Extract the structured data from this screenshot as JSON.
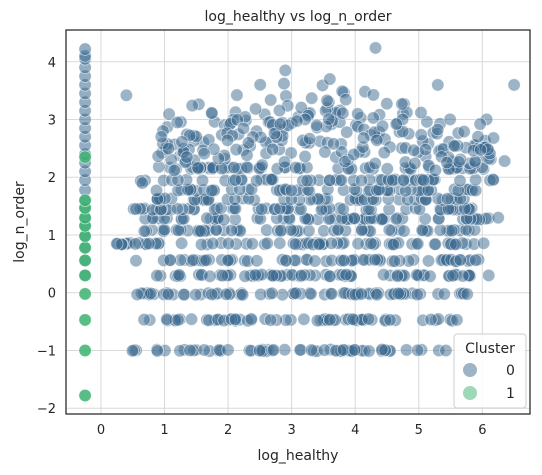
{
  "chart_data": {
    "type": "scatter",
    "title": "log_healthy vs log_n_order",
    "xlabel": "log_healthy",
    "ylabel": "log_n_order",
    "xlim": [
      -0.55,
      6.75
    ],
    "ylim": [
      -2.1,
      4.55
    ],
    "xticks": [
      0,
      1,
      2,
      3,
      4,
      5,
      6
    ],
    "yticks": [
      -2,
      -1,
      0,
      1,
      2,
      3,
      4
    ],
    "grid": true,
    "legend": {
      "title": "Cluster",
      "placement": "bottom-right",
      "entries": [
        {
          "label": "0",
          "color": "#3b6a8f"
        },
        {
          "label": "1",
          "color": "#3cb371"
        }
      ]
    },
    "x_levels": [
      -1.0,
      -0.47,
      -0.02,
      0.3,
      0.56,
      0.78,
      0.98,
      1.16,
      1.3,
      1.47,
      1.6,
      1.78,
      2.1,
      2.4
    ],
    "cluster1_x": -0.25,
    "cluster1_y": [
      -1.78,
      -1.0,
      -0.47,
      -0.02,
      0.3,
      0.56,
      0.78,
      0.98,
      1.16,
      1.3,
      1.47,
      1.6,
      2.35
    ],
    "cluster0_column_x": -0.25,
    "cluster0_column_y": [
      0.3,
      0.56,
      0.78,
      0.98,
      1.16,
      1.3,
      1.47,
      1.6,
      1.78,
      1.95,
      2.1,
      2.25,
      2.4,
      2.55,
      2.7,
      2.85,
      3.0,
      3.15,
      3.3,
      3.45,
      3.6,
      3.75,
      3.9,
      4.05,
      4.1,
      4.22
    ],
    "series_highlight_points": [
      {
        "x": 0.4,
        "y": 3.42
      },
      {
        "x": 4.32,
        "y": 4.24
      },
      {
        "x": 6.5,
        "y": 3.6
      },
      {
        "x": 0.25,
        "y": 0.85
      },
      {
        "x": 5.6,
        "y": -0.47
      },
      {
        "x": 6.1,
        "y": 0.3
      },
      {
        "x": 2.9,
        "y": 3.85
      },
      {
        "x": 3.6,
        "y": 3.7
      },
      {
        "x": 5.3,
        "y": 3.6
      },
      {
        "x": 6.35,
        "y": 2.28
      },
      {
        "x": 6.25,
        "y": 1.3
      },
      {
        "x": 0.55,
        "y": 1.45
      },
      {
        "x": 0.65,
        "y": 1.9
      },
      {
        "x": 0.95,
        "y": 2.7
      },
      {
        "x": 1.2,
        "y": 2.95
      }
    ]
  }
}
